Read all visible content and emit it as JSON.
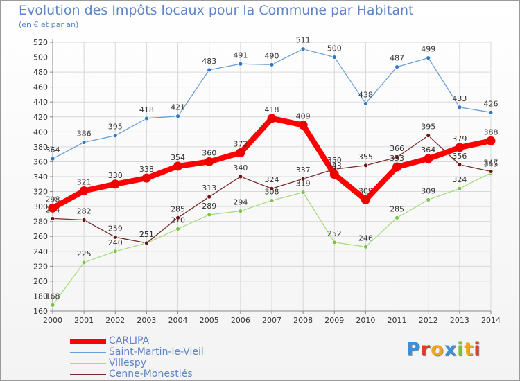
{
  "header": {
    "title": "Evolution des Impôts locaux pour la Commune par Habitant",
    "subtitle": "(en € et par an)"
  },
  "logo": {
    "text": "Proxiti",
    "letter_colors": [
      "#3a8fd8",
      "#e23b2a",
      "#f0a51a",
      "#3a8fd8",
      "#7cbf3a",
      "#f0a51a",
      "#e23b2a"
    ]
  },
  "colors": {
    "title": "#5d85c8",
    "axis_text": "#333333",
    "grid": "#d8d8d8",
    "axis": "#888888"
  },
  "chart_data": {
    "type": "line",
    "title": "Evolution des Impôts locaux pour la Commune par Habitant",
    "subtitle": "(en € et par an)",
    "x": [
      2000,
      2001,
      2002,
      2003,
      2004,
      2005,
      2006,
      2007,
      2008,
      2009,
      2010,
      2011,
      2012,
      2013,
      2014
    ],
    "ylim": [
      160,
      520
    ],
    "yticks": [
      160,
      180,
      200,
      220,
      240,
      260,
      280,
      300,
      320,
      340,
      360,
      380,
      400,
      420,
      440,
      460,
      480,
      500,
      520
    ],
    "grid": true,
    "legend_position": "bottom-left",
    "series": [
      {
        "name": "Saint-Martin-le-Vieil",
        "color": "#6a9fd6",
        "marker": "#2f78c4",
        "values": [
          364,
          386,
          395,
          418,
          421,
          483,
          491,
          490,
          511,
          500,
          438,
          487,
          499,
          433,
          426
        ]
      },
      {
        "name": "Villespy",
        "color": "#a6dd80",
        "marker": "#7cc24a",
        "values": [
          168,
          225,
          240,
          251,
          270,
          289,
          294,
          308,
          319,
          252,
          246,
          285,
          309,
          324,
          345
        ]
      },
      {
        "name": "Cenne-Monestiés",
        "color": "#7a2a2a",
        "marker": "#6b1515",
        "values": [
          284,
          282,
          259,
          251,
          285,
          313,
          340,
          324,
          337,
          350,
          355,
          366,
          395,
          356,
          347
        ]
      },
      {
        "name": "CARLIPA",
        "color": "#ff0000",
        "marker": "#ee0000",
        "values": [
          298,
          321,
          330,
          338,
          354,
          360,
          372,
          418,
          409,
          343,
          309,
          353,
          364,
          379,
          388
        ]
      }
    ]
  }
}
